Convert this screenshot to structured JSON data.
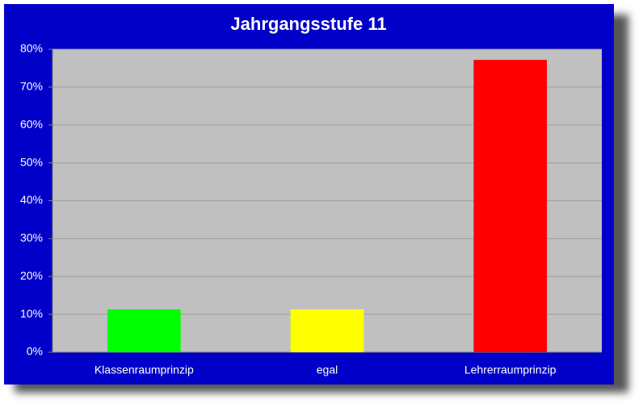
{
  "chart_data": {
    "type": "bar",
    "title": "Jahrgangsstufe 11",
    "categories": [
      "Klassenraumprinzip",
      "egal",
      "Lehrerraumprinzip"
    ],
    "values": [
      11.3,
      11.3,
      77.2
    ],
    "colors": [
      "#00ff00",
      "#ffff00",
      "#ff0000"
    ],
    "ylim": [
      0,
      80
    ],
    "yticks": [
      {
        "value": 0,
        "label": "0%"
      },
      {
        "value": 10,
        "label": "10%"
      },
      {
        "value": 20,
        "label": "20%"
      },
      {
        "value": 30,
        "label": "30%"
      },
      {
        "value": 40,
        "label": "40%"
      },
      {
        "value": 50,
        "label": "50%"
      },
      {
        "value": 60,
        "label": "60%"
      },
      {
        "value": 70,
        "label": "70%"
      },
      {
        "value": 80,
        "label": "80%"
      }
    ],
    "grid": true
  }
}
